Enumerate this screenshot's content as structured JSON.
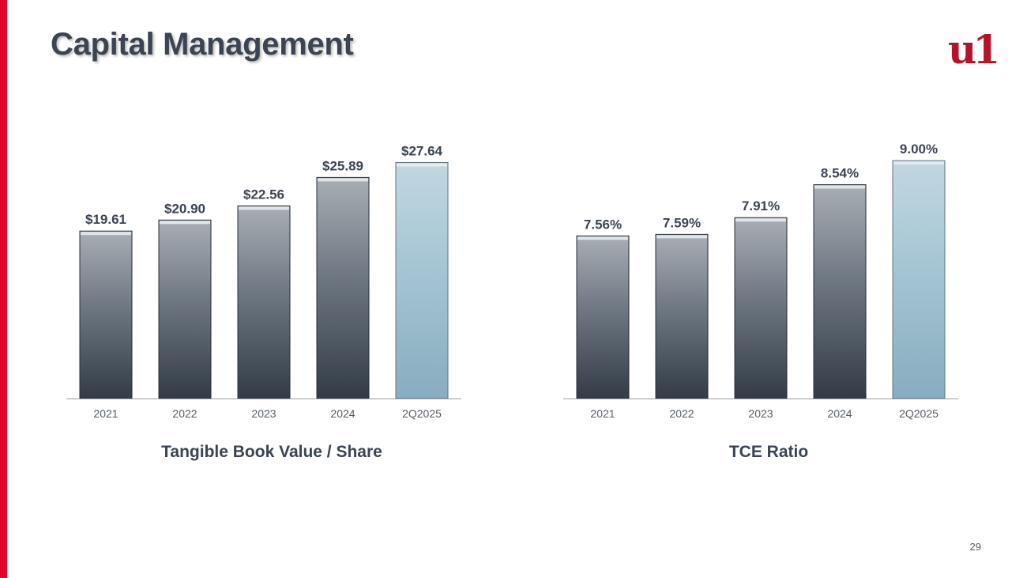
{
  "page": {
    "title": "Capital Management",
    "page_number": "29",
    "logo_text": "u1",
    "accent_color": "#e4002b"
  },
  "chart_data": [
    {
      "type": "bar",
      "title": "Tangible Book Value / Share",
      "categories": [
        "2021",
        "2022",
        "2023",
        "2024",
        "2Q2025"
      ],
      "values": [
        19.61,
        20.9,
        22.56,
        25.89,
        27.64
      ],
      "value_labels": [
        "$19.61",
        "$20.90",
        "$22.56",
        "$25.89",
        "$27.64"
      ],
      "ylim": [
        0,
        30
      ],
      "grid": false,
      "legend": "none",
      "colors": {
        "bar": "#3e4a58",
        "highlight_bar": "#8fb6c9"
      }
    },
    {
      "type": "bar",
      "title": "TCE Ratio",
      "categories": [
        "2021",
        "2022",
        "2023",
        "2024",
        "2Q2025"
      ],
      "values": [
        7.56,
        7.59,
        7.91,
        8.54,
        9.0
      ],
      "value_labels": [
        "7.56%",
        "7.59%",
        "7.91%",
        "8.54%",
        "9.00%"
      ],
      "ylim": [
        4.45,
        9.35
      ],
      "grid": false,
      "legend": "none",
      "colors": {
        "bar": "#3e4a58",
        "highlight_bar": "#8fb6c9"
      }
    }
  ]
}
